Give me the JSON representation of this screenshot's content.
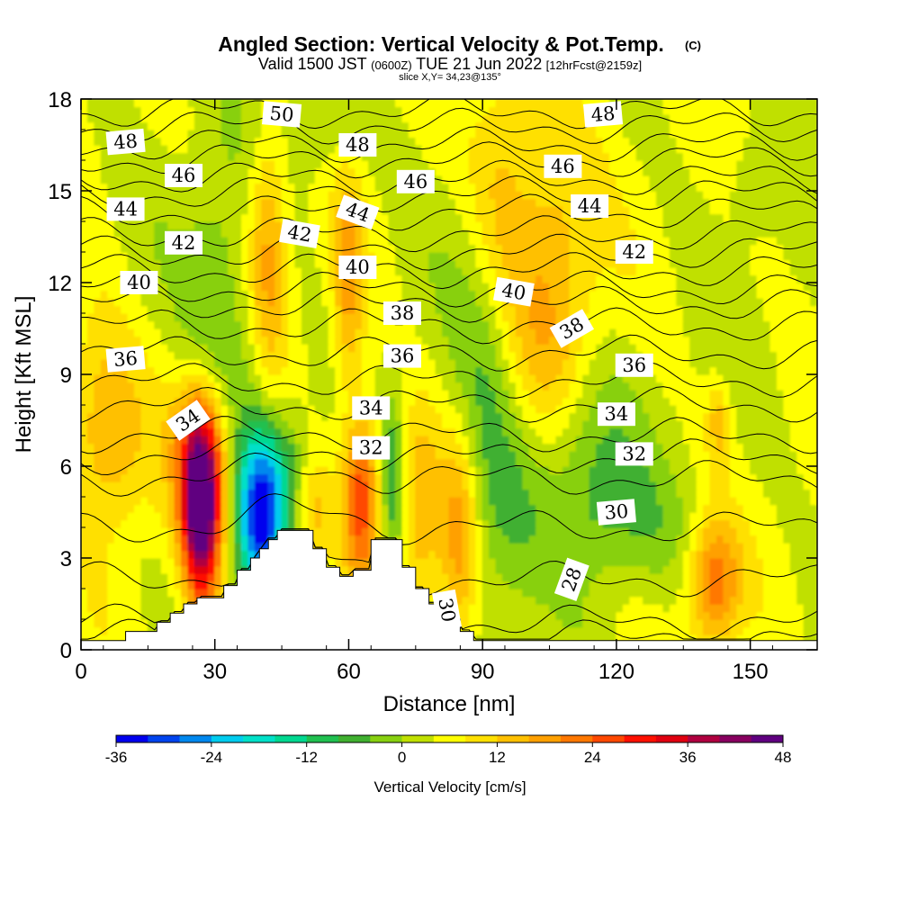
{
  "chart_data": {
    "type": "heatmap",
    "title": "Angled Section: Vertical Velocity & Pot.Temp.",
    "title_mark": "(C)",
    "subtitle_a": "Valid 1500 JST",
    "subtitle_b": "(0600Z)",
    "subtitle_c": "TUE 21 Jun 2022",
    "subtitle_d": "[12hrFcst@2159z]",
    "slice_text": "slice X,Y= 34,23@135°",
    "xlabel": "Distance [nm]",
    "ylabel": "Height [Kft MSL]",
    "xlim": [
      0,
      165
    ],
    "ylim": [
      0,
      18
    ],
    "x_ticks": [
      0,
      30,
      60,
      90,
      120,
      150
    ],
    "y_ticks": [
      0,
      3,
      6,
      9,
      12,
      15,
      18
    ],
    "colorbar": {
      "label": "Vertical Velocity [cm/s]",
      "ticks": [
        -36,
        -24,
        -12,
        0,
        12,
        24,
        36,
        48
      ],
      "min": -36,
      "max": 48,
      "colors": [
        "#0000ee",
        "#0044ee",
        "#0088ee",
        "#00ccee",
        "#00e0c8",
        "#00d890",
        "#20c050",
        "#40b030",
        "#88d010",
        "#c0e000",
        "#ffff00",
        "#ffe000",
        "#ffc000",
        "#ffa000",
        "#ff7800",
        "#ff4800",
        "#ff1000",
        "#e00010",
        "#b00040",
        "#880060",
        "#600080"
      ]
    },
    "terrain_profile": [
      [
        0,
        0.3
      ],
      [
        10,
        0.3
      ],
      [
        10,
        0.6
      ],
      [
        17,
        0.6
      ],
      [
        17,
        0.9
      ],
      [
        20,
        0.9
      ],
      [
        20,
        1.2
      ],
      [
        23,
        1.2
      ],
      [
        23,
        1.5
      ],
      [
        26,
        1.5
      ],
      [
        26,
        1.7
      ],
      [
        32,
        1.7
      ],
      [
        32,
        2.1
      ],
      [
        35,
        2.1
      ],
      [
        35,
        2.6
      ],
      [
        38,
        2.6
      ],
      [
        38,
        3.0
      ],
      [
        40,
        3.0
      ],
      [
        40,
        3.3
      ],
      [
        42,
        3.3
      ],
      [
        42,
        3.6
      ],
      [
        44,
        3.6
      ],
      [
        44,
        3.9
      ],
      [
        52,
        3.9
      ],
      [
        52,
        3.3
      ],
      [
        55,
        3.3
      ],
      [
        55,
        2.7
      ],
      [
        58,
        2.7
      ],
      [
        58,
        2.4
      ],
      [
        61,
        2.4
      ],
      [
        61,
        2.6
      ],
      [
        65,
        2.6
      ],
      [
        65,
        3.6
      ],
      [
        72,
        3.6
      ],
      [
        72,
        2.7
      ],
      [
        75,
        2.7
      ],
      [
        75,
        2.0
      ],
      [
        78,
        2.0
      ],
      [
        78,
        1.5
      ],
      [
        81,
        1.5
      ],
      [
        81,
        1.0
      ],
      [
        85,
        1.0
      ],
      [
        85,
        0.6
      ],
      [
        88,
        0.6
      ],
      [
        88,
        0.3
      ],
      [
        165,
        0.3
      ]
    ],
    "velocity_features": [
      {
        "x": 27,
        "y": 4.6,
        "sx": 3.0,
        "sy": 2.2,
        "value": 44
      },
      {
        "x": 27,
        "y": 6.5,
        "sx": 5.0,
        "sy": 1.8,
        "value": 14
      },
      {
        "x": 40,
        "y": 4.2,
        "sx": 3.5,
        "sy": 1.8,
        "value": -32
      },
      {
        "x": 45,
        "y": 5.8,
        "sx": 4.5,
        "sy": 1.5,
        "value": -12
      },
      {
        "x": 52,
        "y": 4.5,
        "sx": 3.0,
        "sy": 1.5,
        "value": 10
      },
      {
        "x": 63,
        "y": 5.0,
        "sx": 3.0,
        "sy": 2.0,
        "value": 24
      },
      {
        "x": 70,
        "y": 5.5,
        "sx": 2.0,
        "sy": 2.0,
        "value": -12
      },
      {
        "x": 76,
        "y": 4.5,
        "sx": 3.5,
        "sy": 2.5,
        "value": 11
      },
      {
        "x": 85,
        "y": 3.8,
        "sx": 3.0,
        "sy": 2.5,
        "value": 14
      },
      {
        "x": 7,
        "y": 6.5,
        "sx": 6.0,
        "sy": 2.0,
        "value": 10
      },
      {
        "x": 3,
        "y": 9.0,
        "sx": 6.0,
        "sy": 2.0,
        "value": 7
      },
      {
        "x": 42,
        "y": 13.0,
        "sx": 3.0,
        "sy": 3.0,
        "value": 14
      },
      {
        "x": 60,
        "y": 12.0,
        "sx": 2.5,
        "sy": 2.5,
        "value": 14
      },
      {
        "x": 105,
        "y": 12.0,
        "sx": 7.0,
        "sy": 5.0,
        "value": 12
      },
      {
        "x": 93,
        "y": 15.5,
        "sx": 5.0,
        "sy": 3.0,
        "value": 10
      },
      {
        "x": 142,
        "y": 2.2,
        "sx": 4.0,
        "sy": 1.5,
        "value": 18
      },
      {
        "x": 143,
        "y": 7.5,
        "sx": 2.0,
        "sy": 1.0,
        "value": 10
      },
      {
        "x": 30,
        "y": 11.0,
        "sx": 5.0,
        "sy": 3.5,
        "value": -8
      },
      {
        "x": 38,
        "y": 8.5,
        "sx": 4.0,
        "sy": 3.0,
        "value": -6
      },
      {
        "x": 90,
        "y": 10.5,
        "sx": 5.0,
        "sy": 5.0,
        "value": -6
      },
      {
        "x": 95,
        "y": 5.0,
        "sx": 7.0,
        "sy": 3.0,
        "value": -8
      },
      {
        "x": 112,
        "y": 6.5,
        "sx": 8.0,
        "sy": 2.0,
        "value": -10
      },
      {
        "x": 120,
        "y": 4.0,
        "sx": 12.0,
        "sy": 1.5,
        "value": -6
      },
      {
        "x": 55,
        "y": 17.0,
        "sx": 8.0,
        "sy": 1.5,
        "value": -5
      },
      {
        "x": 150,
        "y": 15.0,
        "sx": 3.0,
        "sy": 1.0,
        "value": -5
      }
    ],
    "theta_levels": [
      {
        "value": 28,
        "height": 0.4
      },
      {
        "value": 29,
        "height": 0.9
      },
      {
        "value": 30,
        "height": 2.3
      },
      {
        "value": 31,
        "height": 4.0
      },
      {
        "value": 32,
        "height": 5.6
      },
      {
        "value": 33,
        "height": 6.3
      },
      {
        "value": 34,
        "height": 7.0
      },
      {
        "value": 35,
        "height": 8.0
      },
      {
        "value": 36,
        "height": 8.8
      },
      {
        "value": 37,
        "height": 9.7
      },
      {
        "value": 38,
        "height": 10.6
      },
      {
        "value": 39,
        "height": 11.3
      },
      {
        "value": 40,
        "height": 11.8
      },
      {
        "value": 41,
        "height": 12.4
      },
      {
        "value": 42,
        "height": 13.0
      },
      {
        "value": 43,
        "height": 13.6
      },
      {
        "value": 44,
        "height": 14.3
      },
      {
        "value": 45,
        "height": 14.9
      },
      {
        "value": 46,
        "height": 15.4
      },
      {
        "value": 47,
        "height": 16.0
      },
      {
        "value": 48,
        "height": 16.5
      },
      {
        "value": 49,
        "height": 17.1
      },
      {
        "value": 50,
        "height": 17.6
      }
    ],
    "contour_labels": [
      {
        "text": "50",
        "x": 45,
        "y": 17.5,
        "angle": 5
      },
      {
        "text": "48",
        "x": 10,
        "y": 16.6,
        "angle": -5
      },
      {
        "text": "48",
        "x": 62,
        "y": 16.5,
        "angle": 0
      },
      {
        "text": "48",
        "x": 117,
        "y": 17.5,
        "angle": -5
      },
      {
        "text": "46",
        "x": 23,
        "y": 15.5,
        "angle": 0
      },
      {
        "text": "46",
        "x": 75,
        "y": 15.3,
        "angle": 0
      },
      {
        "text": "46",
        "x": 108,
        "y": 15.8,
        "angle": 0
      },
      {
        "text": "44",
        "x": 10,
        "y": 14.4,
        "angle": 0
      },
      {
        "text": "44",
        "x": 62,
        "y": 14.3,
        "angle": 20
      },
      {
        "text": "44",
        "x": 114,
        "y": 14.5,
        "angle": 0
      },
      {
        "text": "42",
        "x": 23,
        "y": 13.3,
        "angle": 0
      },
      {
        "text": "42",
        "x": 49,
        "y": 13.6,
        "angle": 10
      },
      {
        "text": "42",
        "x": 124,
        "y": 13.0,
        "angle": 0
      },
      {
        "text": "40",
        "x": 13,
        "y": 12.0,
        "angle": 0
      },
      {
        "text": "40",
        "x": 62,
        "y": 12.5,
        "angle": 0
      },
      {
        "text": "40",
        "x": 97,
        "y": 11.7,
        "angle": 10
      },
      {
        "text": "38",
        "x": 72,
        "y": 11.0,
        "angle": 0
      },
      {
        "text": "38",
        "x": 110,
        "y": 10.5,
        "angle": -30
      },
      {
        "text": "36",
        "x": 10,
        "y": 9.5,
        "angle": -5
      },
      {
        "text": "36",
        "x": 72,
        "y": 9.6,
        "angle": 0
      },
      {
        "text": "36",
        "x": 124,
        "y": 9.3,
        "angle": 0
      },
      {
        "text": "34",
        "x": 24,
        "y": 7.5,
        "angle": -35
      },
      {
        "text": "34",
        "x": 65,
        "y": 7.9,
        "angle": 0
      },
      {
        "text": "34",
        "x": 120,
        "y": 7.7,
        "angle": 0
      },
      {
        "text": "32",
        "x": 65,
        "y": 6.6,
        "angle": 0
      },
      {
        "text": "32",
        "x": 124,
        "y": 6.4,
        "angle": 0
      },
      {
        "text": "30",
        "x": 120,
        "y": 4.5,
        "angle": -5
      },
      {
        "text": "30",
        "x": 82,
        "y": 1.3,
        "angle": 80
      },
      {
        "text": "28",
        "x": 110,
        "y": 2.3,
        "angle": -70
      }
    ]
  }
}
